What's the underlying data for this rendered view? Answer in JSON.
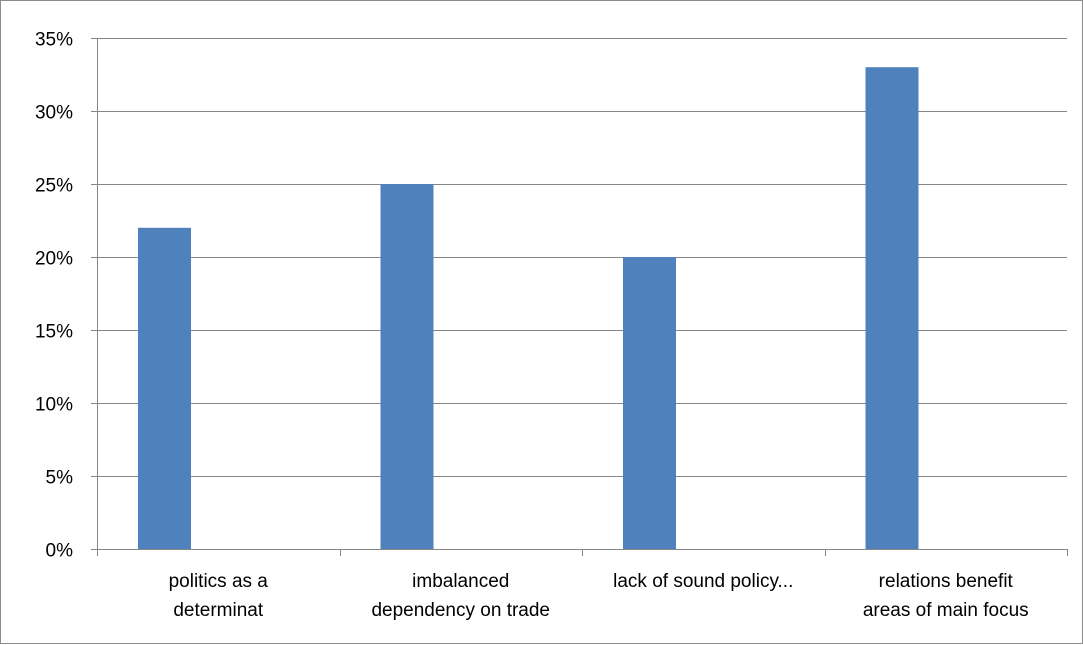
{
  "chart_data": {
    "type": "bar",
    "categories": [
      [
        "politics as a",
        "determinat"
      ],
      [
        "imbalanced",
        "dependency on trade"
      ],
      [
        "lack of sound policy..."
      ],
      [
        "relations benefit",
        "areas of main focus"
      ]
    ],
    "values": [
      22,
      25,
      20,
      33
    ],
    "ylim": [
      0,
      35
    ],
    "ytick_step": 5,
    "ytick_suffix": "%",
    "bar_color": "#4f81bd",
    "grid_color": "#868686",
    "axis_color": "#868686",
    "grid": true,
    "title": "",
    "xlabel": "",
    "ylabel": ""
  }
}
